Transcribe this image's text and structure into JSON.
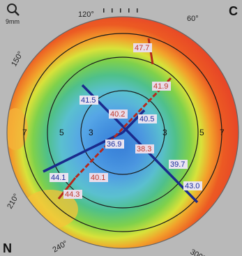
{
  "zoom_label": "9mm",
  "corner_top_right": "C",
  "corner_bottom_left": "N",
  "angle_labels": [
    {
      "angle": 120,
      "text": "120°"
    },
    {
      "angle": 60,
      "text": "60°"
    },
    {
      "angle": 150,
      "text": "150°"
    },
    {
      "angle": 210,
      "text": "210°"
    },
    {
      "angle": 240,
      "text": "240°"
    },
    {
      "angle": 300,
      "text": "300°"
    }
  ],
  "ring_labels": {
    "left": [
      "7",
      "5",
      "3"
    ],
    "right": [
      "3",
      "5",
      "7"
    ]
  },
  "meridian_values": {
    "flat_upper_left": [
      {
        "text": "41.5"
      },
      {
        "text": "40.5"
      },
      {
        "text": "39.7"
      },
      {
        "text": "43.0"
      }
    ],
    "steep_upper_right": [
      {
        "text": "47.7"
      },
      {
        "text": "41.9"
      },
      {
        "text": "40.2"
      },
      {
        "text": "38.3"
      },
      {
        "text": "40.1"
      },
      {
        "text": "44.3"
      }
    ],
    "flat_lower_left": [
      {
        "text": "36.9"
      },
      {
        "text": "44.1"
      }
    ]
  },
  "colors": {
    "background": "#b9b9b9",
    "steep_label_text": "#c0392b",
    "flat_label_text": "#1c2f9e",
    "blue_axis": "#1a2a8c",
    "red_axis": "#b5281b"
  }
}
